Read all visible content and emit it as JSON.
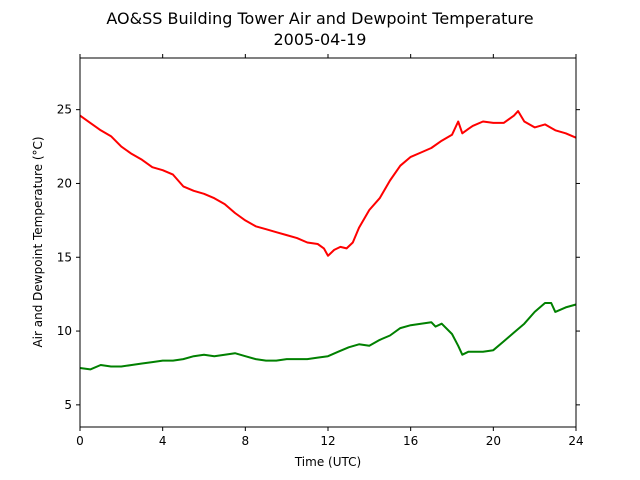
{
  "chart_data": {
    "type": "line",
    "title": "AO&SS Building Tower Air and Dewpoint Temperature",
    "subtitle": "2005-04-19",
    "xlabel": "Time (UTC)",
    "ylabel": "Air and Dewpoint Temperature (°C)",
    "xlim": [
      0,
      24
    ],
    "ylim": [
      3.5,
      28.5
    ],
    "xticks": [
      0,
      4,
      8,
      12,
      16,
      20,
      24
    ],
    "yticks": [
      5,
      10,
      15,
      20,
      25
    ],
    "grid": false,
    "legend": "none",
    "series": [
      {
        "color": "#ff0000",
        "x": [
          0,
          0.5,
          1,
          1.5,
          2,
          2.5,
          3,
          3.5,
          4,
          4.5,
          5,
          5.5,
          6,
          6.5,
          7,
          7.5,
          8,
          8.5,
          9,
          9.5,
          10,
          10.5,
          11,
          11.5,
          11.8,
          12,
          12.3,
          12.6,
          12.9,
          13.2,
          13.5,
          14,
          14.5,
          15,
          15.5,
          16,
          16.5,
          17,
          17.5,
          18,
          18.3,
          18.5,
          18.8,
          19,
          19.5,
          20,
          20.5,
          21,
          21.2,
          21.5,
          22,
          22.5,
          23,
          23.5,
          24
        ],
        "y": [
          24.6,
          24.1,
          23.6,
          23.2,
          22.5,
          22.0,
          21.6,
          21.1,
          20.9,
          20.6,
          19.8,
          19.5,
          19.3,
          19.0,
          18.6,
          18.0,
          17.5,
          17.1,
          16.9,
          16.7,
          16.5,
          16.3,
          16.0,
          15.9,
          15.6,
          15.1,
          15.5,
          15.7,
          15.6,
          16.0,
          17.0,
          18.2,
          19.0,
          20.2,
          21.2,
          21.8,
          22.1,
          22.4,
          22.9,
          23.3,
          24.2,
          23.4,
          23.7,
          23.9,
          24.2,
          24.1,
          24.1,
          24.6,
          24.9,
          24.2,
          23.8,
          24.0,
          23.6,
          23.4,
          23.1
        ]
      },
      {
        "color": "#008000",
        "x": [
          0,
          0.5,
          1,
          1.5,
          2,
          2.5,
          3,
          3.5,
          4,
          4.5,
          5,
          5.5,
          6,
          6.5,
          7,
          7.5,
          8,
          8.5,
          9,
          9.5,
          10,
          10.5,
          11,
          11.5,
          12,
          12.5,
          13,
          13.5,
          14,
          14.5,
          15,
          15.5,
          16,
          16.5,
          17,
          17.2,
          17.5,
          18,
          18.3,
          18.5,
          18.8,
          19,
          19.5,
          20,
          20.5,
          21,
          21.5,
          22,
          22.5,
          22.8,
          23,
          23.5,
          24
        ],
        "y": [
          7.5,
          7.4,
          7.7,
          7.6,
          7.6,
          7.7,
          7.8,
          7.9,
          8.0,
          8.0,
          8.1,
          8.3,
          8.4,
          8.3,
          8.4,
          8.5,
          8.3,
          8.1,
          8.0,
          8.0,
          8.1,
          8.1,
          8.1,
          8.2,
          8.3,
          8.6,
          8.9,
          9.1,
          9.0,
          9.4,
          9.7,
          10.2,
          10.4,
          10.5,
          10.6,
          10.3,
          10.5,
          9.8,
          9.0,
          8.4,
          8.6,
          8.6,
          8.6,
          8.7,
          9.3,
          9.9,
          10.5,
          11.3,
          11.9,
          11.9,
          11.3,
          11.6,
          11.8
        ]
      }
    ]
  }
}
